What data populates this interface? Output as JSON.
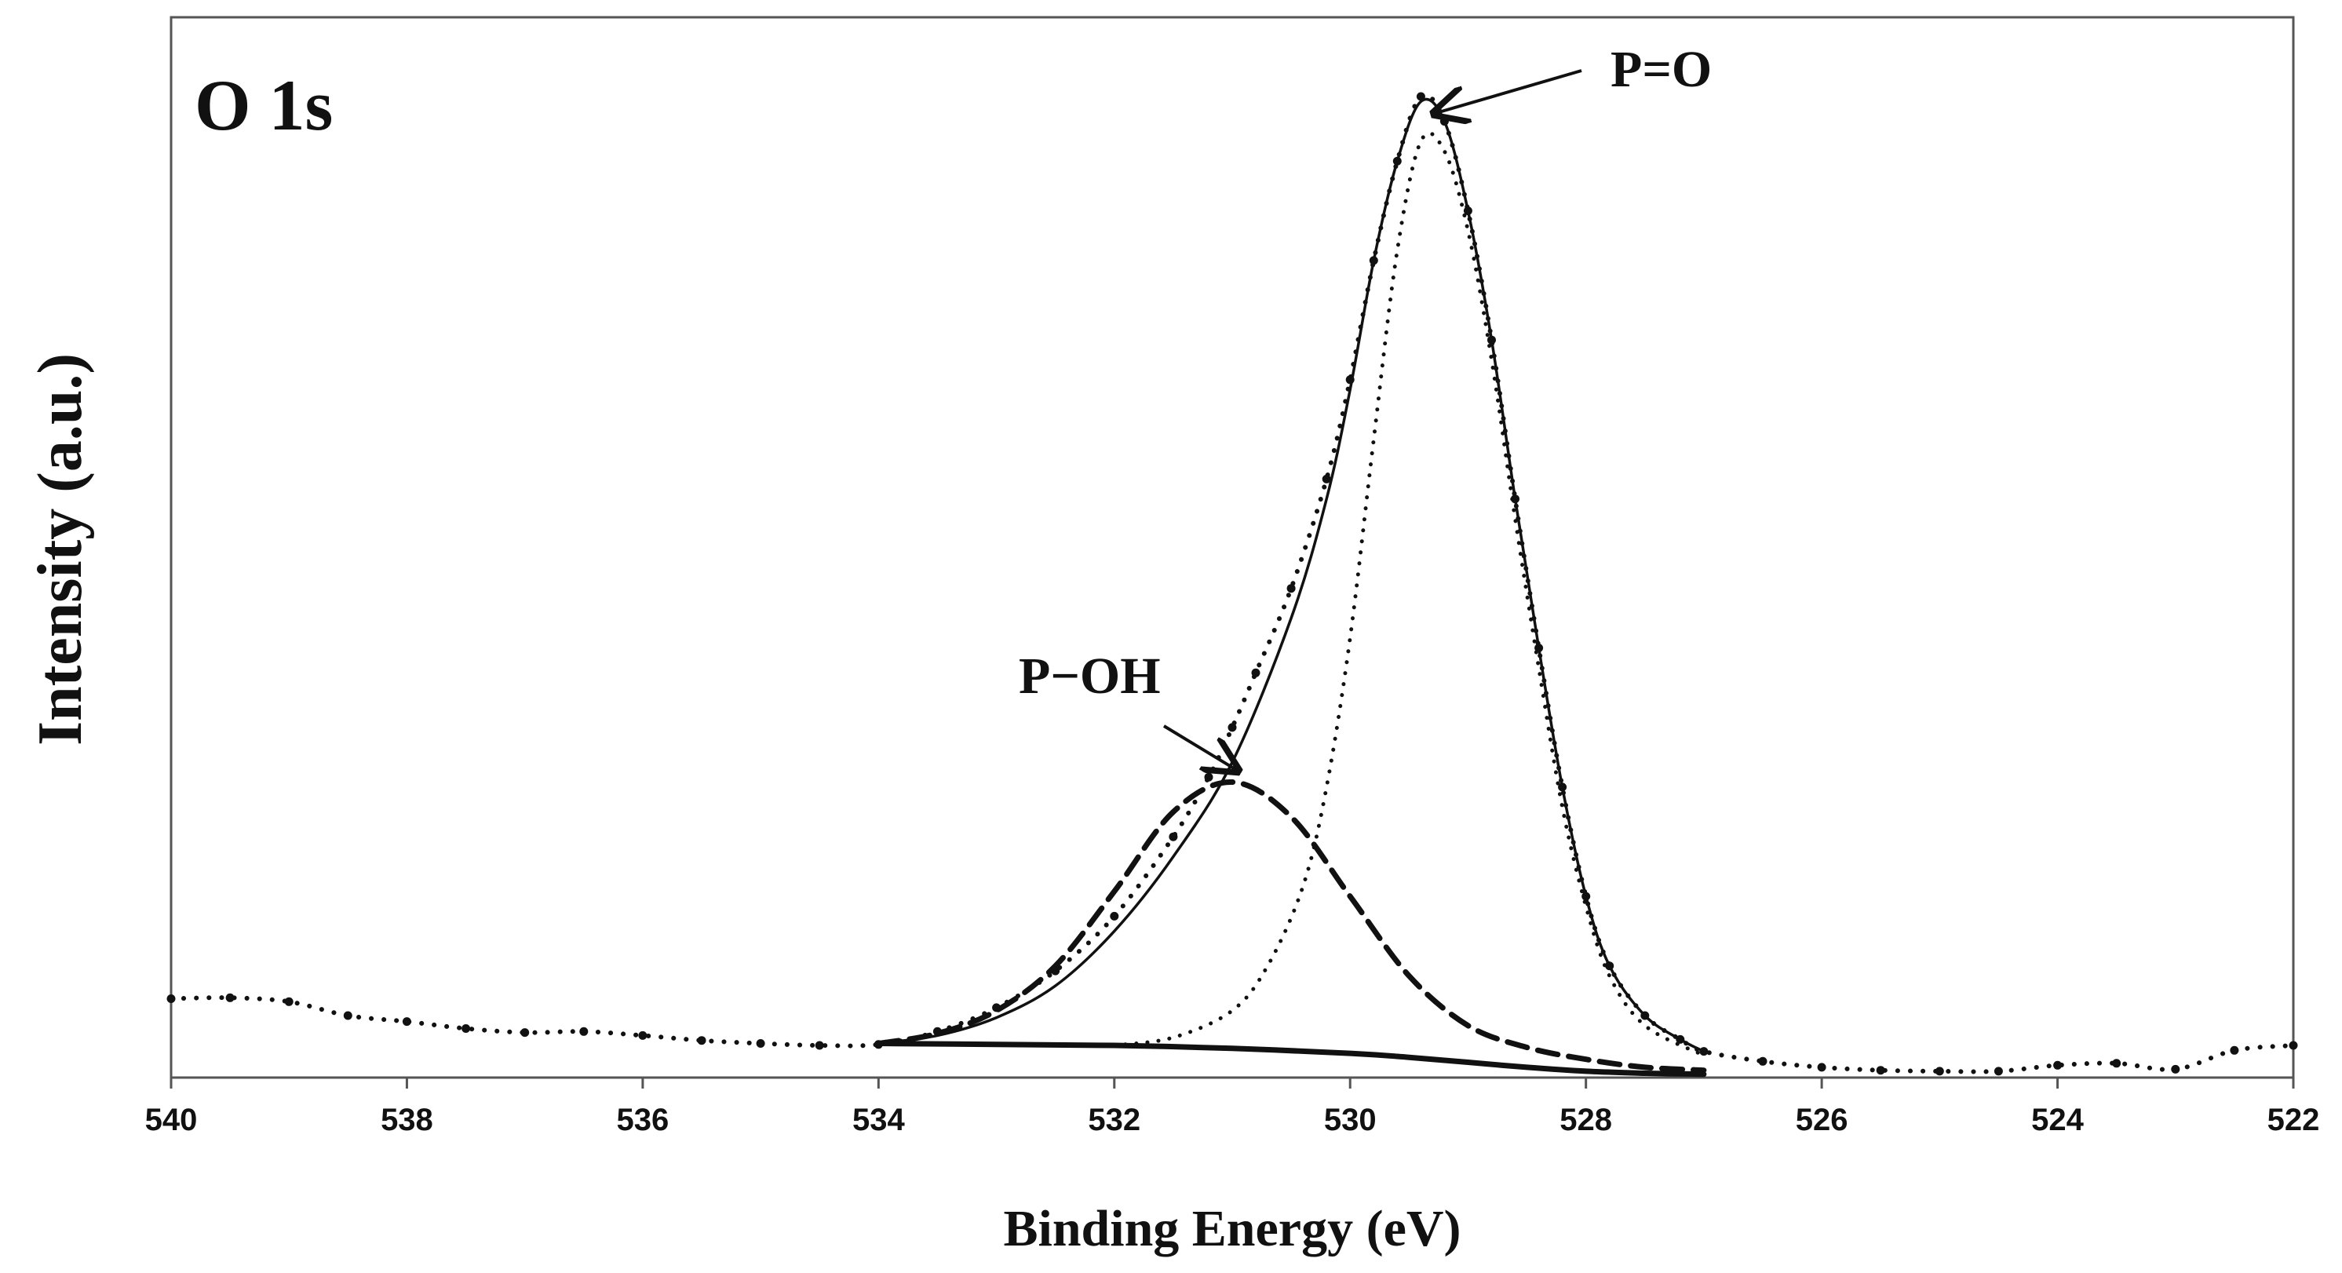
{
  "chart_data": {
    "type": "line",
    "panel_label": "O 1s",
    "xlabel": "Binding Energy (eV)",
    "ylabel": "Intensity (a.u.)",
    "xlim": [
      540,
      522
    ],
    "x_reversed": true,
    "y_units": "arbitrary",
    "ylim": [
      0,
      100
    ],
    "x_ticks": [
      540,
      538,
      536,
      534,
      532,
      530,
      528,
      526,
      524,
      522
    ],
    "grid": false,
    "legend": "none",
    "annotations": [
      {
        "text": "P=O",
        "points_to_x": 529.4,
        "points_to_y": 98.5
      },
      {
        "text": "P−OH",
        "points_to_x": 531.0,
        "points_to_y": 29.5
      }
    ],
    "series": [
      {
        "style": "dotted-markers",
        "color": "#111111",
        "x": [
          540.0,
          539.5,
          539.0,
          538.5,
          538.0,
          537.5,
          537.0,
          536.5,
          536.0,
          535.5,
          535.0,
          534.5,
          534.0,
          533.5,
          533.0,
          532.5,
          532.0,
          531.5,
          531.2,
          531.0,
          530.8,
          530.5,
          530.2,
          530.0,
          529.8,
          529.6,
          529.4,
          529.2,
          529.0,
          528.8,
          528.6,
          528.4,
          528.2,
          528.0,
          527.8,
          527.5,
          527.2,
          527.0,
          526.5,
          526.0,
          525.5,
          525.0,
          524.5,
          524.0,
          523.5,
          523.0,
          522.5,
          522.0
        ],
        "y": [
          7.7,
          7.8,
          7.4,
          6.0,
          5.4,
          4.7,
          4.3,
          4.4,
          4.0,
          3.5,
          3.2,
          3.0,
          3.1,
          4.4,
          6.8,
          10.5,
          16.0,
          24.0,
          30.0,
          35.0,
          40.5,
          49.0,
          60.0,
          70.0,
          82.0,
          92.0,
          98.5,
          96.0,
          87.0,
          74.0,
          58.0,
          43.0,
          29.0,
          18.0,
          11.0,
          6.0,
          3.6,
          2.4,
          1.4,
          0.8,
          0.5,
          0.4,
          0.4,
          1.0,
          1.2,
          0.6,
          2.5,
          3.0
        ]
      },
      {
        "style": "solid",
        "color": "#111111",
        "x": [
          534.0,
          533.5,
          533.0,
          532.5,
          532.0,
          531.5,
          531.0,
          530.5,
          530.2,
          530.0,
          529.8,
          529.6,
          529.4,
          529.2,
          529.0,
          528.8,
          528.6,
          528.4,
          528.2,
          528.0,
          527.8,
          527.5,
          527.2,
          527.0
        ],
        "y": [
          3.2,
          4.0,
          5.8,
          9.0,
          14.5,
          22.0,
          31.5,
          46.0,
          58.0,
          69.0,
          82.0,
          92.0,
          98.0,
          96.0,
          87.0,
          74.0,
          58.0,
          43.0,
          29.0,
          18.0,
          11.0,
          6.0,
          3.6,
          2.4
        ]
      },
      {
        "style": "dashed",
        "color": "#111111",
        "x": [
          534.0,
          533.5,
          533.0,
          532.5,
          532.0,
          531.5,
          531.0,
          530.5,
          530.0,
          529.5,
          529.0,
          528.5,
          528.0,
          527.5,
          527.0
        ],
        "y": [
          3.2,
          4.2,
          6.5,
          11.0,
          18.5,
          26.5,
          29.5,
          26.0,
          18.0,
          10.0,
          5.0,
          2.8,
          1.6,
          0.8,
          0.5
        ]
      },
      {
        "style": "dotted",
        "color": "#111111",
        "x": [
          532.0,
          531.5,
          531.0,
          530.7,
          530.4,
          530.2,
          530.0,
          529.8,
          529.6,
          529.4,
          529.2,
          529.0,
          528.8,
          528.6,
          528.4,
          528.2,
          528.0,
          527.8,
          527.5,
          527.0
        ],
        "y": [
          3.0,
          3.8,
          6.5,
          11.0,
          19.0,
          29.0,
          44.0,
          64.0,
          83.0,
          94.0,
          93.0,
          85.0,
          72.0,
          56.0,
          41.0,
          27.0,
          17.0,
          10.0,
          5.0,
          2.0
        ]
      },
      {
        "style": "solid-baseline",
        "color": "#111111",
        "x": [
          534.0,
          533.0,
          532.0,
          531.0,
          530.0,
          529.5,
          529.0,
          528.5,
          528.0,
          527.5,
          527.0
        ],
        "y": [
          3.2,
          3.1,
          3.0,
          2.7,
          2.2,
          1.8,
          1.3,
          0.8,
          0.4,
          0.2,
          0.1
        ]
      }
    ]
  }
}
